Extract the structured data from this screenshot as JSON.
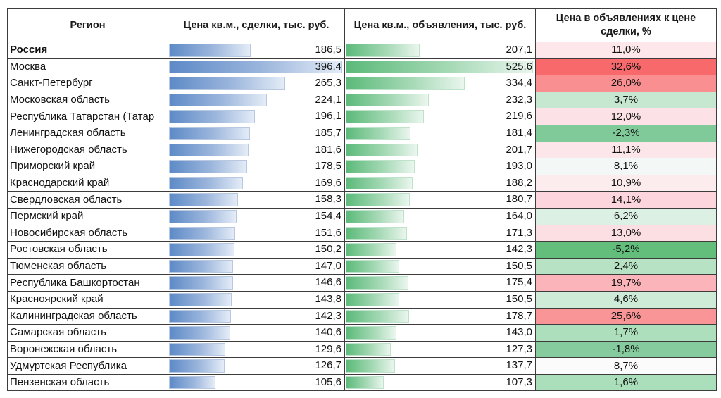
{
  "table": {
    "headers": [
      "Регион",
      "Цена кв.м., сделки, тыс. руб.",
      "Цена кв.м., объявления, тыс. руб.",
      "Цена в объявлениях к цене сделки, %"
    ],
    "max_deal": 396.4,
    "max_listing": 525.6,
    "rows": [
      {
        "region": "Россия",
        "deal": "186,5",
        "listing": "207,1",
        "ratio": "11,0%",
        "ratio_color": "#fde7ea",
        "bold": true
      },
      {
        "region": "Москва",
        "deal": "396,4",
        "listing": "525,6",
        "ratio": "32,6%",
        "ratio_color": "#f8696b"
      },
      {
        "region": "Санкт-Петербург",
        "deal": "265,3",
        "listing": "334,4",
        "ratio": "26,0%",
        "ratio_color": "#fa8f92"
      },
      {
        "region": "Московская область",
        "deal": "224,1",
        "listing": "232,3",
        "ratio": "3,7%",
        "ratio_color": "#c6e8d0"
      },
      {
        "region": "Республика Татарстан (Татар",
        "deal": "196,1",
        "listing": "219,6",
        "ratio": "12,0%",
        "ratio_color": "#fce2e6"
      },
      {
        "region": "Ленинградская область",
        "deal": "185,7",
        "listing": "181,4",
        "ratio": "-2,3%",
        "ratio_color": "#80c999"
      },
      {
        "region": "Нижегородская область",
        "deal": "181,6",
        "listing": "201,7",
        "ratio": "11,1%",
        "ratio_color": "#fde6e9"
      },
      {
        "region": "Приморский край",
        "deal": "178,5",
        "listing": "193,0",
        "ratio": "8,1%",
        "ratio_color": "#f3f8f6"
      },
      {
        "region": "Краснодарский край",
        "deal": "169,6",
        "listing": "188,2",
        "ratio": "10,9%",
        "ratio_color": "#fcecee"
      },
      {
        "region": "Свердловская область",
        "deal": "158,3",
        "listing": "180,7",
        "ratio": "14,1%",
        "ratio_color": "#fcd6dc"
      },
      {
        "region": "Пермский край",
        "deal": "154,4",
        "listing": "164,0",
        "ratio": "6,2%",
        "ratio_color": "#dcf0e3"
      },
      {
        "region": "Новосибирская область",
        "deal": "151,6",
        "listing": "171,3",
        "ratio": "13,0%",
        "ratio_color": "#fcdfe3"
      },
      {
        "region": "Ростовская область",
        "deal": "150,2",
        "listing": "142,3",
        "ratio": "-5,2%",
        "ratio_color": "#63be7b"
      },
      {
        "region": "Тюменская область",
        "deal": "147,0",
        "listing": "150,5",
        "ratio": "2,4%",
        "ratio_color": "#b8e2c4"
      },
      {
        "region": "Республика Башкортостан",
        "deal": "146,6",
        "listing": "175,4",
        "ratio": "19,7%",
        "ratio_color": "#fbb4ba"
      },
      {
        "region": "Красноярский край",
        "deal": "143,8",
        "listing": "150,5",
        "ratio": "4,6%",
        "ratio_color": "#cdebd6"
      },
      {
        "region": "Калининградская область",
        "deal": "142,3",
        "listing": "178,7",
        "ratio": "25,6%",
        "ratio_color": "#f99497"
      },
      {
        "region": "Самарская область",
        "deal": "140,6",
        "listing": "143,0",
        "ratio": "1,7%",
        "ratio_color": "#aedfbc"
      },
      {
        "region": "Воронежская область",
        "deal": "129,6",
        "listing": "127,3",
        "ratio": "-1,8%",
        "ratio_color": "#86cb9d"
      },
      {
        "region": "Удмуртская Республика",
        "deal": "126,7",
        "listing": "137,7",
        "ratio": "8,7%",
        "ratio_color": "#fbfbfc"
      },
      {
        "region": "Пензенская область",
        "deal": "105,6",
        "listing": "107,3",
        "ratio": "1,6%",
        "ratio_color": "#abdeba"
      }
    ]
  }
}
